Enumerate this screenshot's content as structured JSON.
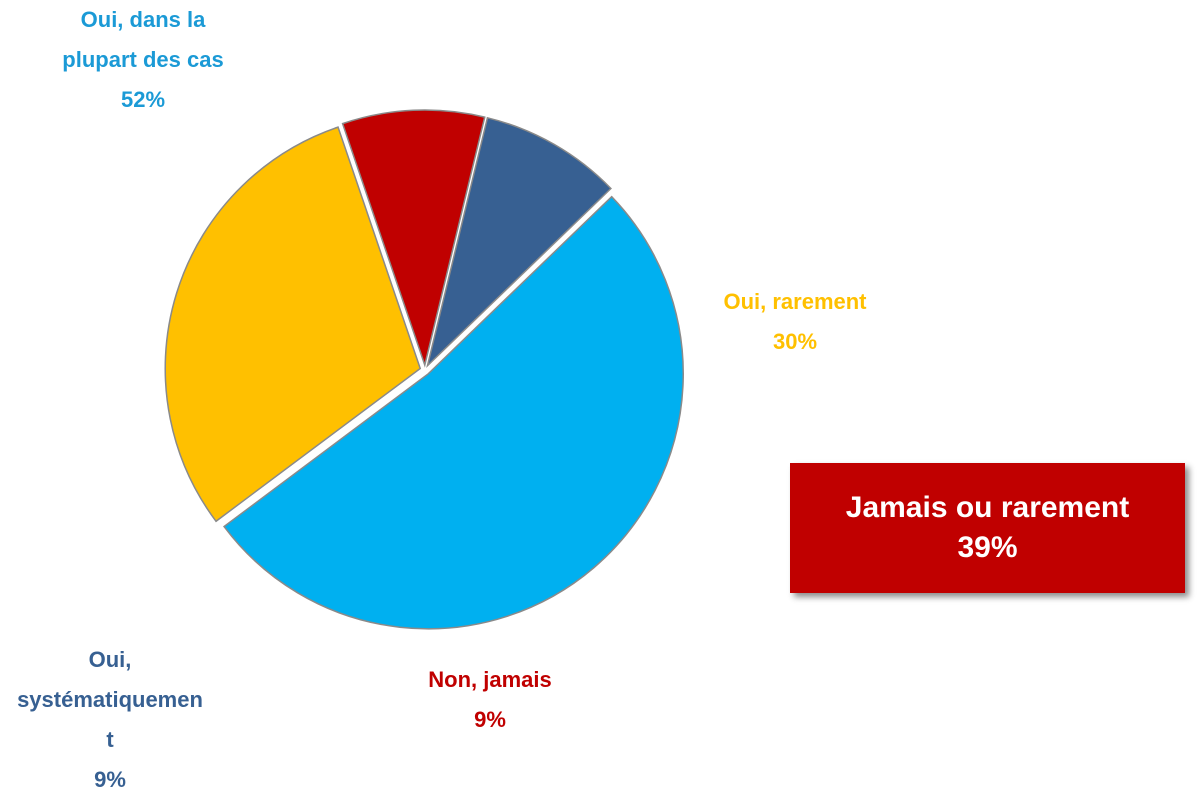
{
  "chart_data": {
    "type": "pie",
    "categories": [
      "Oui, dans la plupart des cas",
      "Oui, rarement",
      "Non, jamais",
      "Oui, systématiquement"
    ],
    "values": [
      52,
      30,
      9,
      9
    ],
    "value_labels": [
      "52%",
      "30%",
      "9%",
      "9%"
    ],
    "colors": [
      "#00b0f0",
      "#ffc000",
      "#c00000",
      "#376092"
    ],
    "label_colors": [
      "#1b9ad6",
      "#ffc000",
      "#c00000",
      "#376092"
    ],
    "annotation": {
      "text": "Jamais ou rarement",
      "label": "39%",
      "color": "#c00000"
    }
  }
}
